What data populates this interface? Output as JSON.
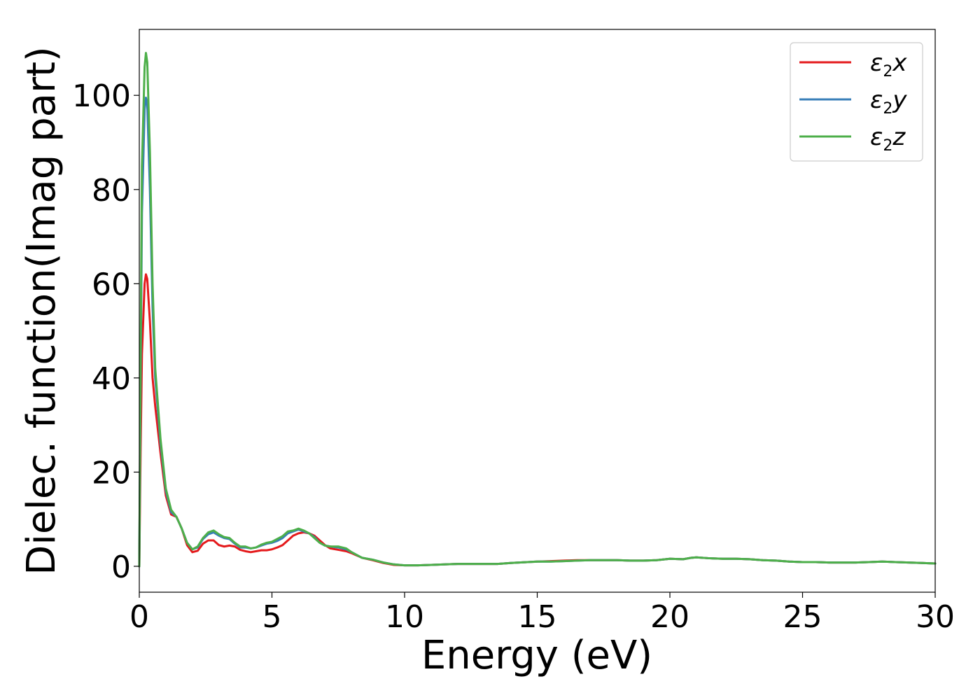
{
  "chart_data": {
    "type": "line",
    "title": "",
    "xlabel": "Energy (eV)",
    "ylabel": "Dielec. function(Imag part)",
    "xlim": [
      0,
      30
    ],
    "ylim": [
      -5.5,
      114
    ],
    "xticks": [
      0,
      5,
      10,
      15,
      20,
      25,
      30
    ],
    "yticks": [
      0,
      20,
      40,
      60,
      80,
      100
    ],
    "grid": false,
    "legend_position": "top-right",
    "series": [
      {
        "name": "x",
        "color": "#e41a1c",
        "x": [
          0,
          0.05,
          0.1,
          0.2,
          0.25,
          0.3,
          0.4,
          0.5,
          0.6,
          0.8,
          1.0,
          1.2,
          1.4,
          1.6,
          1.8,
          2.0,
          2.2,
          2.4,
          2.6,
          2.8,
          3.0,
          3.2,
          3.4,
          3.6,
          3.8,
          4.0,
          4.2,
          4.4,
          4.6,
          4.8,
          5.0,
          5.2,
          5.4,
          5.6,
          5.8,
          6.0,
          6.2,
          6.4,
          6.6,
          6.8,
          7.0,
          7.2,
          7.5,
          7.8,
          8.0,
          8.4,
          8.8,
          9.2,
          9.6,
          10.0,
          10.5,
          11.0,
          12.0,
          13.0,
          13.5,
          14.0,
          15.0,
          15.5,
          16.0,
          16.5,
          17.0,
          17.5,
          18.0,
          18.5,
          19.0,
          19.5,
          20.0,
          20.5,
          20.8,
          21.0,
          21.5,
          22.0,
          22.5,
          23.0,
          23.5,
          24.0,
          24.5,
          25.0,
          25.5,
          26.0,
          26.5,
          27.0,
          27.5,
          28.0,
          28.5,
          29.0,
          29.5,
          30.0
        ],
        "y": [
          0,
          25,
          45,
          60,
          62,
          61,
          52,
          40,
          34,
          24,
          15,
          11,
          10.5,
          8,
          4.5,
          3.0,
          3.3,
          4.8,
          5.5,
          5.5,
          4.5,
          4.2,
          4.4,
          4.2,
          3.5,
          3.2,
          3.0,
          3.2,
          3.4,
          3.4,
          3.6,
          4.0,
          4.5,
          5.5,
          6.5,
          7.0,
          7.2,
          7.0,
          6.5,
          5.5,
          4.5,
          3.8,
          3.5,
          3.2,
          2.8,
          1.8,
          1.3,
          0.7,
          0.3,
          0.2,
          0.2,
          0.3,
          0.5,
          0.5,
          0.5,
          0.7,
          1.0,
          1.1,
          1.2,
          1.3,
          1.3,
          1.3,
          1.3,
          1.2,
          1.2,
          1.3,
          1.6,
          1.5,
          1.8,
          1.9,
          1.7,
          1.6,
          1.6,
          1.5,
          1.3,
          1.2,
          1.0,
          0.9,
          0.9,
          0.8,
          0.8,
          0.8,
          0.9,
          1.0,
          0.9,
          0.8,
          0.7,
          0.6
        ]
      },
      {
        "name": "y",
        "color": "#377eb8",
        "x": [
          0,
          0.05,
          0.1,
          0.2,
          0.25,
          0.3,
          0.4,
          0.5,
          0.6,
          0.8,
          1.0,
          1.2,
          1.4,
          1.6,
          1.8,
          2.0,
          2.2,
          2.4,
          2.6,
          2.8,
          3.0,
          3.2,
          3.4,
          3.6,
          3.8,
          4.0,
          4.2,
          4.4,
          4.6,
          4.8,
          5.0,
          5.2,
          5.4,
          5.6,
          5.8,
          6.0,
          6.2,
          6.4,
          6.6,
          6.8,
          7.0,
          7.2,
          7.5,
          7.8,
          8.0,
          8.4,
          8.8,
          9.2,
          9.6,
          10.0,
          10.5,
          11.0,
          12.0,
          13.0,
          13.5,
          14.0,
          15.0,
          15.5,
          16.0,
          16.5,
          17.0,
          17.5,
          18.0,
          18.5,
          19.0,
          19.5,
          20.0,
          20.5,
          20.8,
          21.0,
          21.5,
          22.0,
          22.5,
          23.0,
          23.5,
          24.0,
          24.5,
          25.0,
          25.5,
          26.0,
          26.5,
          27.0,
          27.5,
          28.0,
          28.5,
          29.0,
          29.5,
          30.0
        ],
        "y": [
          0,
          40,
          75,
          97,
          99.5,
          98,
          80,
          55,
          40,
          26,
          16,
          11.5,
          10.5,
          8,
          5.0,
          3.6,
          4.0,
          5.8,
          6.8,
          7.2,
          6.5,
          6.0,
          5.8,
          4.8,
          4.0,
          4.0,
          3.8,
          4.0,
          4.4,
          4.8,
          5.0,
          5.4,
          6.0,
          7.0,
          7.4,
          7.8,
          7.4,
          7.0,
          6.2,
          5.0,
          4.4,
          4.2,
          4.0,
          3.6,
          3.0,
          1.8,
          1.4,
          0.8,
          0.4,
          0.2,
          0.2,
          0.3,
          0.5,
          0.5,
          0.5,
          0.7,
          1.0,
          1.0,
          1.1,
          1.2,
          1.3,
          1.3,
          1.3,
          1.2,
          1.2,
          1.3,
          1.6,
          1.5,
          1.8,
          1.9,
          1.7,
          1.6,
          1.6,
          1.5,
          1.3,
          1.2,
          1.0,
          0.9,
          0.9,
          0.8,
          0.8,
          0.8,
          0.9,
          1.0,
          0.9,
          0.8,
          0.7,
          0.6
        ]
      },
      {
        "name": "z",
        "color": "#4daf4a",
        "x": [
          0,
          0.05,
          0.1,
          0.2,
          0.25,
          0.3,
          0.4,
          0.5,
          0.6,
          0.8,
          1.0,
          1.2,
          1.4,
          1.6,
          1.8,
          2.0,
          2.2,
          2.4,
          2.6,
          2.8,
          3.0,
          3.2,
          3.4,
          3.6,
          3.8,
          4.0,
          4.2,
          4.4,
          4.6,
          4.8,
          5.0,
          5.2,
          5.4,
          5.6,
          5.8,
          6.0,
          6.2,
          6.4,
          6.6,
          6.8,
          7.0,
          7.2,
          7.5,
          7.8,
          8.0,
          8.4,
          8.8,
          9.2,
          9.6,
          10.0,
          10.5,
          11.0,
          12.0,
          13.0,
          13.5,
          14.0,
          15.0,
          15.5,
          16.0,
          16.5,
          17.0,
          17.5,
          18.0,
          18.5,
          19.0,
          19.5,
          20.0,
          20.5,
          20.8,
          21.0,
          21.5,
          22.0,
          22.5,
          23.0,
          23.5,
          24.0,
          24.5,
          25.0,
          25.5,
          26.0,
          26.5,
          27.0,
          27.5,
          28.0,
          28.5,
          29.0,
          29.5,
          30.0
        ],
        "y": [
          0,
          45,
          85,
          106,
          109,
          107,
          88,
          60,
          42,
          27,
          16.5,
          12,
          10.5,
          8,
          5.0,
          3.6,
          4.2,
          6.0,
          7.2,
          7.6,
          6.8,
          6.2,
          6.0,
          5.0,
          4.2,
          4.2,
          3.8,
          4.0,
          4.6,
          5.0,
          5.2,
          5.8,
          6.4,
          7.4,
          7.6,
          8.0,
          7.6,
          7.0,
          6.0,
          5.0,
          4.4,
          4.2,
          4.2,
          3.8,
          3.0,
          1.8,
          1.4,
          0.8,
          0.4,
          0.2,
          0.2,
          0.3,
          0.5,
          0.5,
          0.5,
          0.7,
          1.0,
          1.0,
          1.1,
          1.2,
          1.3,
          1.3,
          1.3,
          1.2,
          1.2,
          1.3,
          1.6,
          1.5,
          1.8,
          1.9,
          1.7,
          1.6,
          1.6,
          1.5,
          1.3,
          1.2,
          1.0,
          0.9,
          0.9,
          0.8,
          0.8,
          0.8,
          0.9,
          1.0,
          0.9,
          0.8,
          0.7,
          0.6
        ]
      }
    ],
    "legend": [
      {
        "symbol": "ε",
        "sub": "2",
        "axis": "x",
        "color": "#e41a1c"
      },
      {
        "symbol": "ε",
        "sub": "2",
        "axis": "y",
        "color": "#377eb8"
      },
      {
        "symbol": "ε",
        "sub": "2",
        "axis": "z",
        "color": "#4daf4a"
      }
    ]
  }
}
